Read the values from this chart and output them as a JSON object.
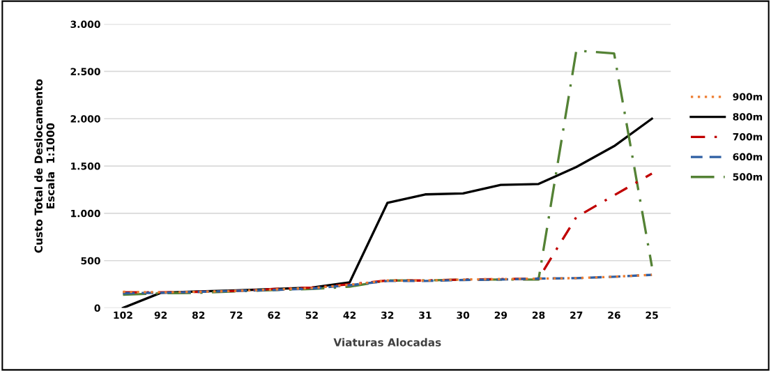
{
  "chart_data": {
    "type": "line",
    "xlabel": "Viaturas Alocadas",
    "ylabel": "Custo Total de Deslocamento\nEscala  1:1000",
    "categories": [
      "102",
      "92",
      "82",
      "72",
      "62",
      "52",
      "42",
      "32",
      "31",
      "30",
      "29",
      "28",
      "27",
      "26",
      "25"
    ],
    "series": [
      {
        "name": "900m",
        "color": "#ed7d31",
        "line_style": "dotted",
        "values": [
          170,
          165,
          170,
          180,
          195,
          210,
          245,
          290,
          290,
          300,
          305,
          310,
          315,
          330,
          350
        ]
      },
      {
        "name": "800m",
        "color": "#000000",
        "line_style": "solid",
        "values": [
          0,
          160,
          175,
          185,
          200,
          215,
          270,
          1110,
          1200,
          1210,
          1300,
          1310,
          1490,
          1710,
          2000
        ]
      },
      {
        "name": "700m",
        "color": "#c00000",
        "line_style": "dashdot",
        "values": [
          165,
          165,
          170,
          180,
          200,
          215,
          250,
          290,
          290,
          300,
          305,
          310,
          960,
          1190,
          1420
        ]
      },
      {
        "name": "600m",
        "color": "#2e5fa3",
        "line_style": "dashed",
        "values": [
          155,
          160,
          170,
          180,
          190,
          205,
          240,
          285,
          285,
          295,
          300,
          310,
          315,
          330,
          350
        ]
      },
      {
        "name": "500m",
        "color": "#548235",
        "line_style": "longdashdot",
        "values": [
          140,
          155,
          160,
          175,
          190,
          200,
          225,
          290,
          290,
          300,
          300,
          300,
          2720,
          2690,
          440
        ]
      }
    ],
    "ylim": [
      0,
      3000
    ],
    "yticks": [
      {
        "value": 0,
        "label": "0"
      },
      {
        "value": 500,
        "label": "500"
      },
      {
        "value": 1000,
        "label": "1.000"
      },
      {
        "value": 1500,
        "label": "1.500"
      },
      {
        "value": 2000,
        "label": "2.000"
      },
      {
        "value": 2500,
        "label": "2.500"
      },
      {
        "value": 3000,
        "label": "3.000"
      }
    ],
    "grid": "y",
    "legend": "right",
    "marker": "none"
  }
}
